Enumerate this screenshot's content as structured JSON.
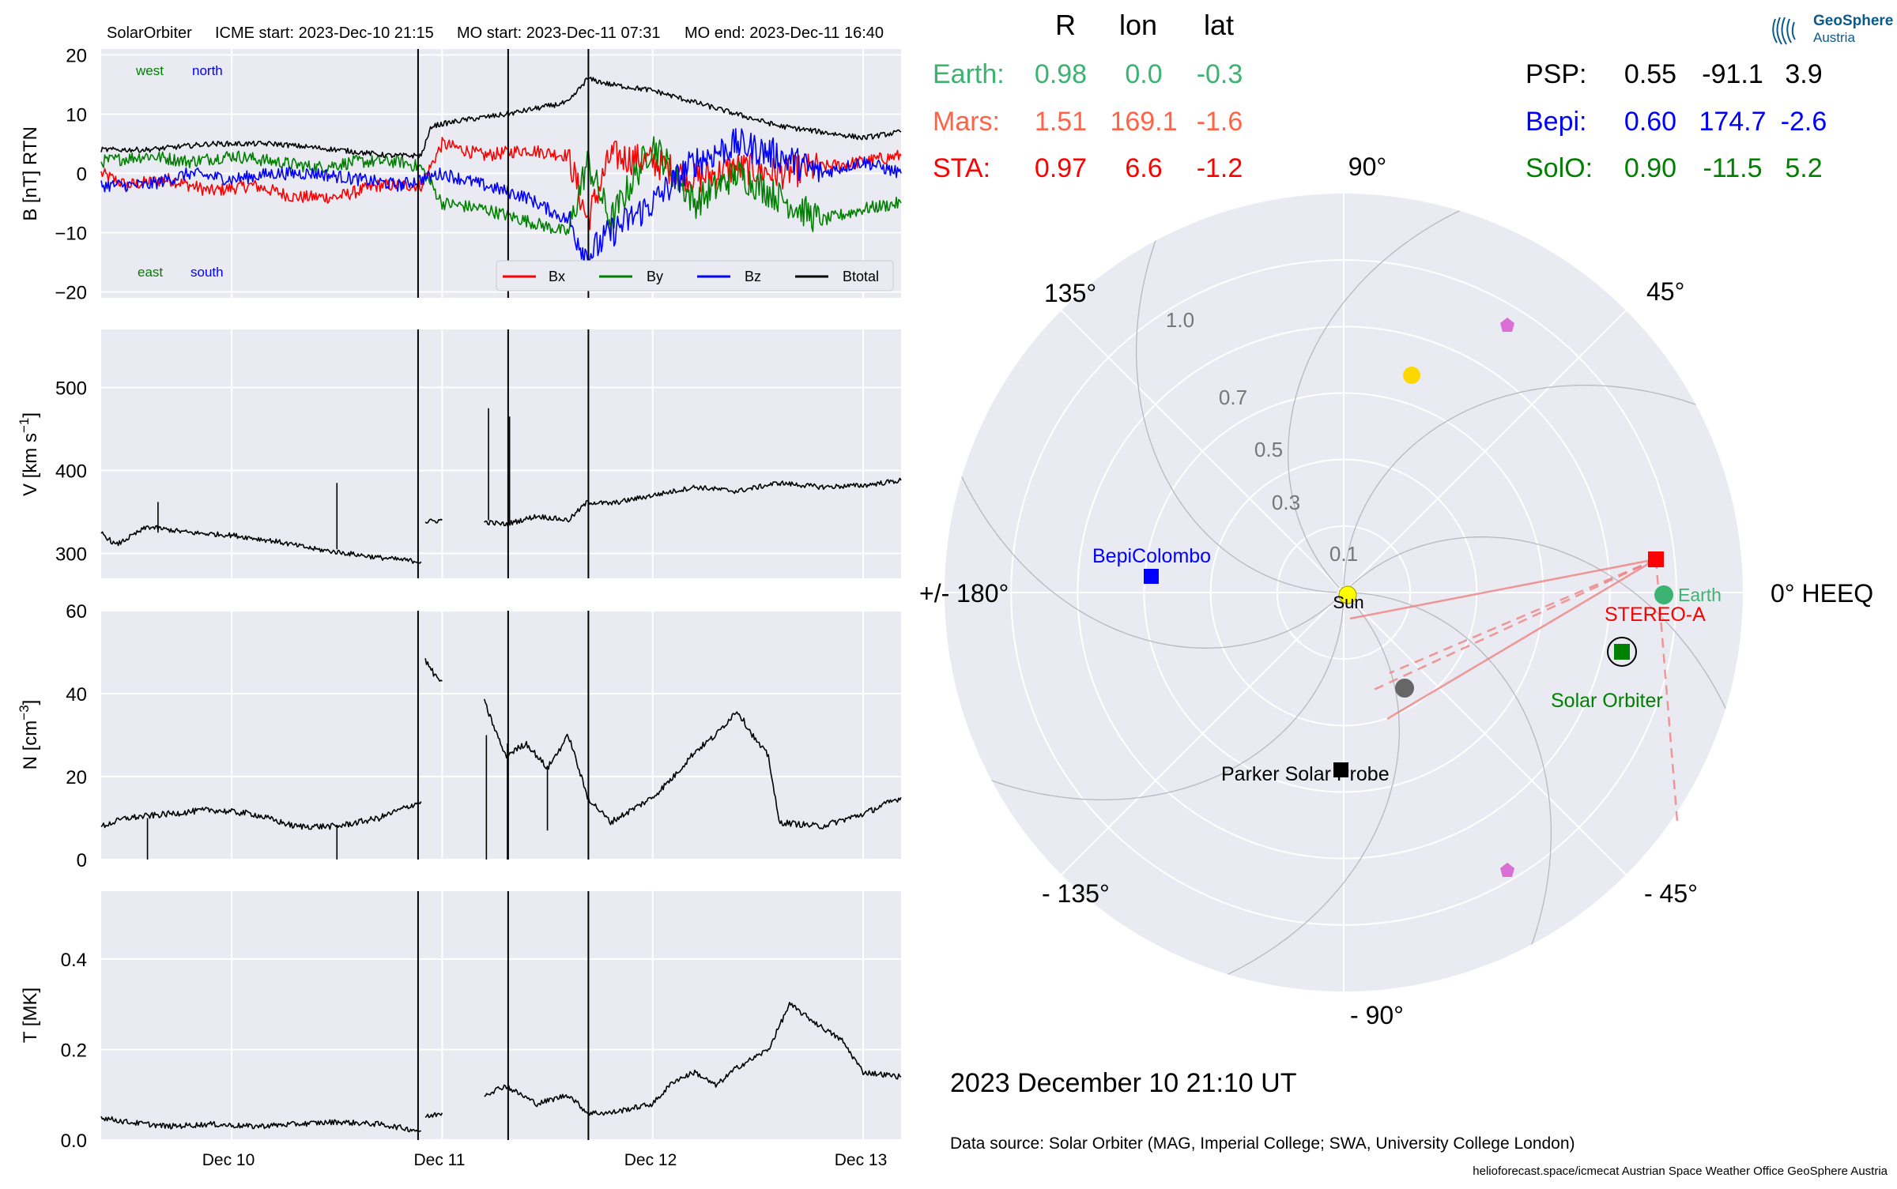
{
  "header": {
    "spacecraft": "SolarOrbiter",
    "icme_start": "ICME start: 2023-Dec-10 21:15",
    "mo_start": "MO start: 2023-Dec-11 07:31",
    "mo_end": "MO end: 2023-Dec-11 16:40"
  },
  "b_panel": {
    "west": "west",
    "north": "north",
    "east": "east",
    "south": "south",
    "legend": [
      "Bx",
      "By",
      "Bz",
      "Btotal"
    ]
  },
  "ylabels": {
    "b": "B [nT] RTN",
    "v_main": "V [km s",
    "v_sup": "−1",
    "v_close": "]",
    "n_main": "N [cm",
    "n_sup": "−3",
    "n_close": "]",
    "t": "T [MK]"
  },
  "xticks": [
    "Dec 10",
    "Dec 11",
    "Dec 12",
    "Dec 13"
  ],
  "chart_data": [
    {
      "type": "line",
      "panel": "magnetic_field",
      "ylabel": "B [nT] RTN",
      "ylim": [
        -21,
        21
      ],
      "yticks": [
        -20,
        -10,
        0,
        10,
        20
      ],
      "x_unit": "days since 2023-12-09 00:00 UT",
      "xlim": [
        9.38,
        13.18
      ],
      "event_lines": [
        "2023-12-10 21:15",
        "2023-12-11 07:31",
        "2023-12-11 16:40"
      ],
      "series": [
        {
          "name": "Btotal",
          "color": "#000000",
          "x": [
            9.38,
            9.6,
            9.9,
            10.2,
            10.5,
            10.75,
            10.9,
            10.95,
            11.1,
            11.31,
            11.45,
            11.6,
            11.69,
            11.8,
            12.0,
            12.2,
            12.4,
            12.6,
            12.8,
            13.0,
            13.18
          ],
          "y": [
            4,
            4,
            5,
            5,
            4,
            3,
            3,
            8,
            9,
            10,
            11,
            12,
            16,
            15,
            14,
            12,
            10,
            8,
            7,
            6,
            7
          ]
        },
        {
          "name": "Bx",
          "color": "#ff0000",
          "x": [
            9.38,
            9.5,
            9.7,
            9.9,
            10.1,
            10.3,
            10.5,
            10.7,
            10.9,
            11.0,
            11.2,
            11.4,
            11.6,
            11.69,
            11.8,
            12.0,
            12.2,
            12.4,
            12.6,
            12.8,
            13.0,
            13.18
          ],
          "y": [
            0,
            -2,
            -1,
            -3,
            -2,
            -4,
            -4,
            -2,
            -2,
            5,
            3,
            4,
            3,
            -8,
            3,
            2,
            -1,
            1,
            0,
            1,
            2,
            3
          ]
        },
        {
          "name": "By",
          "color": "#008000",
          "x": [
            9.38,
            9.6,
            9.8,
            10.0,
            10.2,
            10.4,
            10.6,
            10.8,
            10.9,
            11.0,
            11.2,
            11.4,
            11.6,
            11.69,
            11.8,
            12.0,
            12.2,
            12.4,
            12.6,
            12.8,
            13.0,
            13.18
          ],
          "y": [
            2,
            3,
            2,
            3,
            2,
            1,
            2,
            2,
            1,
            -5,
            -6,
            -8,
            -10,
            2,
            -8,
            5,
            -5,
            0,
            -4,
            -8,
            -6,
            -5
          ]
        },
        {
          "name": "Bz",
          "color": "#0000ff",
          "x": [
            9.38,
            9.6,
            9.8,
            10.0,
            10.2,
            10.4,
            10.6,
            10.8,
            10.9,
            11.0,
            11.2,
            11.4,
            11.6,
            11.69,
            11.8,
            12.0,
            12.2,
            12.4,
            12.6,
            12.8,
            13.0,
            13.18
          ],
          "y": [
            -2,
            -2,
            0,
            -1,
            0,
            0,
            -1,
            -2,
            -1,
            0,
            -2,
            -4,
            -8,
            -14,
            -10,
            -5,
            2,
            5,
            3,
            0,
            2,
            0
          ]
        }
      ]
    },
    {
      "type": "line",
      "panel": "speed",
      "ylabel": "V [km s^-1]",
      "ylim": [
        270,
        570
      ],
      "yticks": [
        300,
        400,
        500
      ],
      "series": [
        {
          "name": "",
          "color": "#000000",
          "x": [
            9.38,
            9.45,
            9.6,
            9.8,
            10.0,
            10.2,
            10.4,
            10.55,
            10.7,
            10.9
          ],
          "y": [
            325,
            310,
            332,
            325,
            322,
            315,
            305,
            300,
            295,
            290
          ]
        },
        {
          "name": "",
          "color": "#000000",
          "x": [
            10.92,
            11.0
          ],
          "y": [
            338,
            340
          ]
        },
        {
          "name": "",
          "color": "#000000",
          "x": [
            11.2,
            11.3,
            11.45,
            11.6,
            11.69,
            11.8,
            12.0,
            12.2,
            12.4,
            12.6,
            12.8,
            13.0,
            13.18
          ],
          "y": [
            338,
            335,
            345,
            340,
            362,
            360,
            370,
            380,
            375,
            385,
            380,
            382,
            388
          ]
        }
      ]
    },
    {
      "type": "line",
      "panel": "density",
      "ylabel": "N [cm^-3]",
      "ylim": [
        0,
        60
      ],
      "yticks": [
        0,
        20,
        40,
        60
      ],
      "series": [
        {
          "name": "",
          "color": "#000000",
          "x": [
            9.38,
            9.5,
            9.7,
            9.9,
            10.1,
            10.3,
            10.5,
            10.7,
            10.9
          ],
          "y": [
            8,
            10,
            11,
            12,
            11,
            8,
            8,
            10,
            14
          ]
        },
        {
          "name": "",
          "color": "#000000",
          "x": [
            10.92,
            10.97,
            11.0
          ],
          "y": [
            48,
            44,
            43
          ]
        },
        {
          "name": "",
          "color": "#000000",
          "x": [
            11.2,
            11.3,
            11.4,
            11.5,
            11.6,
            11.69,
            11.8,
            11.9,
            12.0,
            12.1,
            12.2,
            12.3,
            12.4,
            12.5,
            12.55,
            12.6,
            12.8,
            13.0,
            13.18
          ],
          "y": [
            38,
            25,
            28,
            22,
            30,
            15,
            9,
            12,
            15,
            20,
            26,
            30,
            36,
            28,
            25,
            9,
            8,
            11,
            15
          ]
        }
      ]
    },
    {
      "type": "line",
      "panel": "temperature",
      "ylabel": "T [MK]",
      "ylim": [
        0,
        0.55
      ],
      "yticks": [
        0.0,
        0.2,
        0.4
      ],
      "series": [
        {
          "name": "",
          "color": "#000000",
          "x": [
            9.38,
            9.5,
            9.7,
            9.9,
            10.1,
            10.3,
            10.5,
            10.7,
            10.9
          ],
          "y": [
            0.05,
            0.04,
            0.03,
            0.035,
            0.03,
            0.035,
            0.04,
            0.035,
            0.02
          ]
        },
        {
          "name": "",
          "color": "#000000",
          "x": [
            10.92,
            11.0
          ],
          "y": [
            0.05,
            0.06
          ]
        },
        {
          "name": "",
          "color": "#000000",
          "x": [
            11.2,
            11.3,
            11.45,
            11.6,
            11.69,
            11.8,
            12.0,
            12.1,
            12.2,
            12.3,
            12.4,
            12.55,
            12.65,
            12.8,
            12.9,
            13.0,
            13.18
          ],
          "y": [
            0.1,
            0.12,
            0.08,
            0.1,
            0.06,
            0.06,
            0.08,
            0.13,
            0.15,
            0.12,
            0.16,
            0.2,
            0.3,
            0.25,
            0.22,
            0.15,
            0.14
          ]
        }
      ]
    },
    {
      "type": "scatter",
      "panel": "polar_position_plot",
      "radial_ticks": [
        "0.1",
        "0.3",
        "0.5",
        "0.7",
        "1.0"
      ],
      "angle_labels": {
        "a0": "0° HEEQ",
        "a45": "45°",
        "a90": "90°",
        "a135": "135°",
        "a180": "+/- 180°",
        "am135": "- 135°",
        "am90": "- 90°",
        "am45": "- 45°"
      },
      "table": {
        "headers": [
          "R",
          "lon",
          "lat"
        ],
        "left": [
          {
            "name": "Earth:",
            "R": "0.98",
            "lon": "0.0",
            "lat": "-0.3",
            "color": "#3cb371"
          },
          {
            "name": "Mars:",
            "R": "1.51",
            "lon": "169.1",
            "lat": "-1.6",
            "color": "#ff6347"
          },
          {
            "name": "STA:",
            "R": "0.97",
            "lon": "6.6",
            "lat": "-1.2",
            "color": "#ff0000"
          }
        ],
        "right": [
          {
            "name": "PSP:",
            "R": "0.55",
            "lon": "-91.1",
            "lat": "3.9",
            "color": "#000000"
          },
          {
            "name": "Bepi:",
            "R": "0.60",
            "lon": "174.7",
            "lat": "-2.6",
            "color": "#0000ff"
          },
          {
            "name": "SolO:",
            "R": "0.90",
            "lon": "-11.5",
            "lat": "5.2",
            "color": "#008000"
          }
        ]
      },
      "bodies": {
        "sun": "Sun",
        "earth": "Earth",
        "stereo": "STEREO-A",
        "bepi": "BepiColombo",
        "solo": "Solar Orbiter",
        "psp": "Parker Solar Probe"
      },
      "date": "2023 December 10  21:10 UT"
    }
  ],
  "footer": {
    "data_source": "Data source: Solar Orbiter (MAG, Imperial College; SWA, University College London)",
    "credits": "helioforecast.space/icmecat   Austrian Space Weather Office   GeoSphere Austria"
  },
  "logo": {
    "line1": "GeoSphere",
    "line2": "Austria"
  }
}
